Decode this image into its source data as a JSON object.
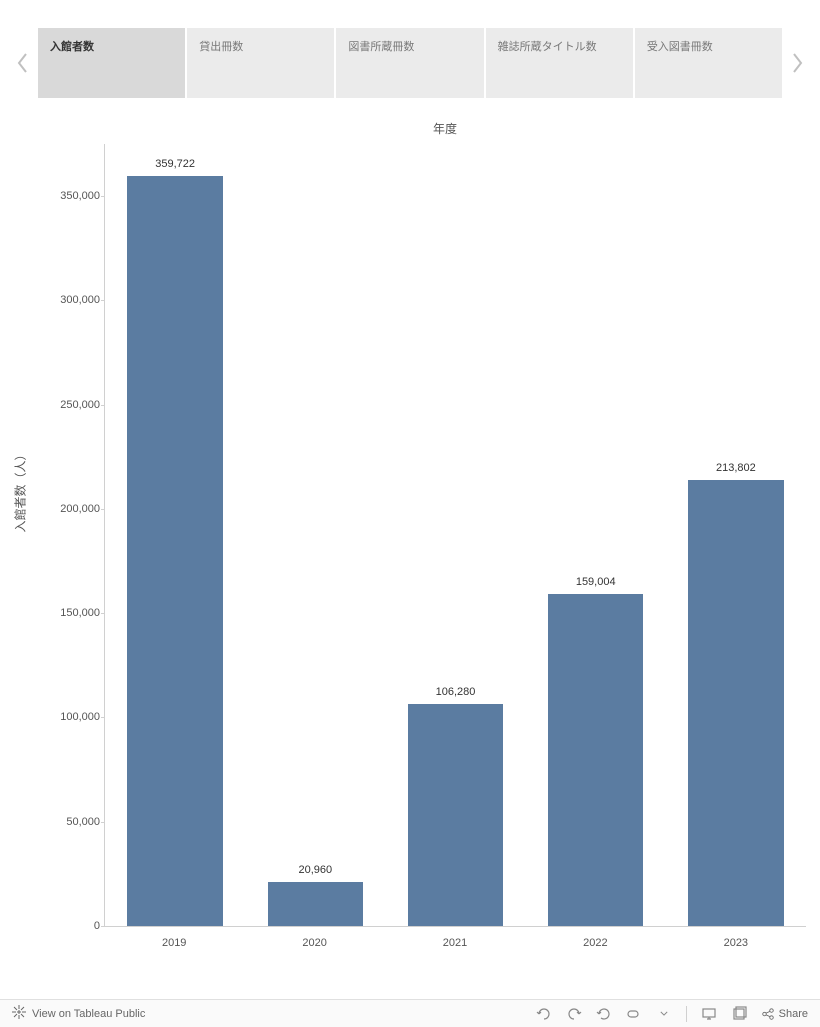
{
  "tabs": {
    "items": [
      {
        "label": "入館者数",
        "active": true
      },
      {
        "label": "貸出冊数",
        "active": false
      },
      {
        "label": "図書所蔵冊数",
        "active": false
      },
      {
        "label": "雑誌所蔵タイトル数",
        "active": false
      },
      {
        "label": "受入図書冊数",
        "active": false
      }
    ]
  },
  "chart": {
    "type": "bar",
    "title": "年度",
    "y_axis_label": "入館者数（人）",
    "categories": [
      "2019",
      "2020",
      "2021",
      "2022",
      "2023"
    ],
    "values": [
      359722,
      20960,
      106280,
      159004,
      213802
    ],
    "value_labels": [
      "359,722",
      "20,960",
      "106,280",
      "159,004",
      "213,802"
    ],
    "bar_color": "#5b7ca1",
    "y_ticks": [
      0,
      50000,
      100000,
      150000,
      200000,
      250000,
      300000,
      350000
    ],
    "y_tick_labels": [
      "0",
      "50,000",
      "100,000",
      "150,000",
      "200,000",
      "250,000",
      "300,000",
      "350,000"
    ],
    "y_min": 0,
    "y_max": 375000,
    "axis_color": "#d0d0d0",
    "label_color": "#555555",
    "value_label_color": "#333333",
    "label_fontsize": 11,
    "title_fontsize": 12,
    "background_color": "#ffffff"
  },
  "footer": {
    "view_label": "View on Tableau Public",
    "share_label": "Share"
  }
}
